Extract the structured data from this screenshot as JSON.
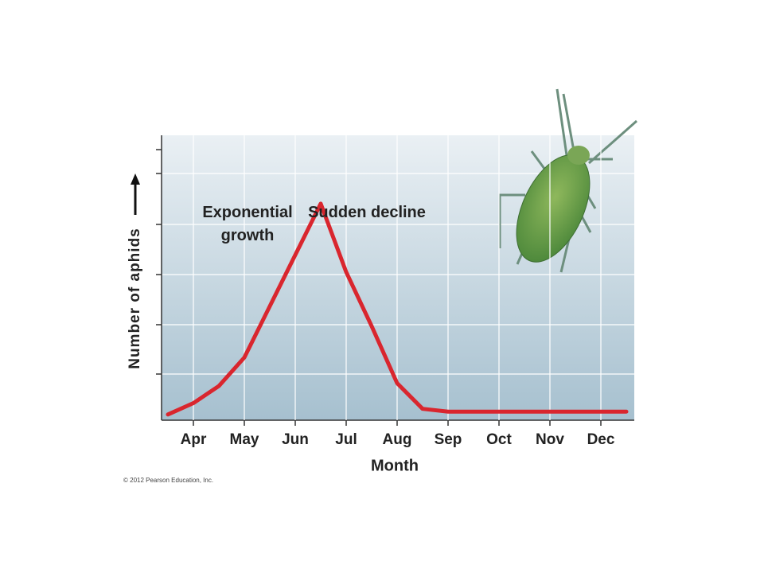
{
  "chart_data": {
    "type": "line",
    "y_label": "Number of aphids",
    "x_label": "Month",
    "annotations": [
      "Exponential growth",
      "Sudden decline"
    ],
    "credit": "© 2012 Pearson Education, Inc.",
    "categories": [
      null,
      "Apr",
      null,
      "May",
      null,
      "Jun",
      null,
      "Jul",
      null,
      "Aug",
      null,
      "Sep",
      null,
      "Oct",
      null,
      "Nov",
      null,
      "Dec",
      null
    ],
    "values": [
      2,
      6,
      12,
      22,
      40,
      58,
      76,
      52,
      33,
      13,
      4,
      3,
      3,
      3,
      3,
      3,
      3,
      3,
      3
    ],
    "color": "#d9262e",
    "ylim": [
      0,
      100
    ]
  }
}
